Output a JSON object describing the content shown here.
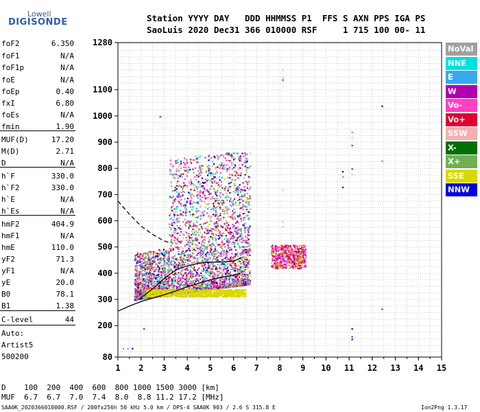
{
  "logo": {
    "line1": "Lowell",
    "line2": "DIGISONDE"
  },
  "header": {
    "line1": "Station YYYY DAY   DDD HHMMSS P1  FFS S AXN PPS IGA PS",
    "line2": "SaoLuis 2020 Dec31 366 010000 RSF     1 715 100 00- 11"
  },
  "params": [
    {
      "k": "foF2",
      "v": "6.350"
    },
    {
      "k": "foF1",
      "v": "N/A"
    },
    {
      "k": "foF1p",
      "v": "N/A"
    },
    {
      "k": "foE",
      "v": "N/A"
    },
    {
      "k": "foEp",
      "v": "0.40"
    },
    {
      "k": "fxI",
      "v": "6.80"
    },
    {
      "k": "foEs",
      "v": "N/A"
    },
    {
      "k": "fmin",
      "v": "1.90"
    },
    {
      "k": "MUF(D)",
      "v": "17.20"
    },
    {
      "k": "M(D)",
      "v": "2.71"
    },
    {
      "k": "D",
      "v": "N/A"
    },
    {
      "k": "h`F",
      "v": "330.0"
    },
    {
      "k": "h`F2",
      "v": "330.0"
    },
    {
      "k": "h`E",
      "v": "N/A"
    },
    {
      "k": "h`Es",
      "v": "N/A"
    },
    {
      "k": "hmF2",
      "v": "404.9"
    },
    {
      "k": "hmF1",
      "v": "N/A"
    },
    {
      "k": "hmE",
      "v": "110.0"
    },
    {
      "k": "yF2",
      "v": "71.3"
    },
    {
      "k": "yF1",
      "v": "N/A"
    },
    {
      "k": "yE",
      "v": "20.0"
    },
    {
      "k": "B0",
      "v": "78.1"
    },
    {
      "k": "B1",
      "v": "1.38"
    },
    {
      "k": "C-level",
      "v": "44"
    }
  ],
  "auto": {
    "l1": "Auto:",
    "l2": "Artist5",
    "l3": "500200"
  },
  "legend": [
    {
      "label": "NoVal",
      "color": "#a0a0a0"
    },
    {
      "label": "NNE",
      "color": "#00e0e0"
    },
    {
      "label": "E",
      "color": "#3aa8f0"
    },
    {
      "label": "W",
      "color": "#b000b0"
    },
    {
      "label": "Vo-",
      "color": "#ff40c0"
    },
    {
      "label": "Vo+",
      "color": "#e00030"
    },
    {
      "label": "SSW",
      "color": "#f5b0b0"
    },
    {
      "label": "X-",
      "color": "#007000"
    },
    {
      "label": "X+",
      "color": "#70b050"
    },
    {
      "label": "SSE",
      "color": "#d8d800"
    },
    {
      "label": "NNW",
      "color": "#0000e0"
    }
  ],
  "footer": {
    "d_line": "D    100  200  400  600  800 1000 1500 3000 [km]",
    "muf_line": "MUF  6.7  6.7  7.0  7.4  8.0  8.8 11.2 17.2 [MHz]",
    "file_line": "SAA0K_2020366010000.RSF / 200fx256h 50 kHz 5.0 km / DPS-4 SAA0K 903 / 2.6 S 315.8 E",
    "version": "Ion2Png 1.3.17"
  },
  "chart_data": {
    "type": "scatter",
    "x_ticks": [
      1,
      2,
      3,
      4,
      5,
      6,
      7,
      8,
      9,
      10,
      11,
      12,
      13,
      14,
      15
    ],
    "y_ticks": [
      80,
      200,
      300,
      400,
      500,
      600,
      700,
      800,
      900,
      1000,
      1100,
      1280
    ],
    "xlim": [
      1,
      15
    ],
    "ylim": [
      80,
      1280
    ],
    "grid": true,
    "trace_virtual": [
      [
        1,
        255
      ],
      [
        1.5,
        275
      ],
      [
        2,
        292
      ],
      [
        2.5,
        305
      ],
      [
        3,
        318
      ],
      [
        3.5,
        332
      ],
      [
        4,
        348
      ],
      [
        4.5,
        362
      ],
      [
        5,
        375
      ],
      [
        5.5,
        385
      ],
      [
        6,
        393
      ],
      [
        6.3,
        400
      ]
    ],
    "trace_true": [
      [
        1.9,
        300
      ],
      [
        2.5,
        340
      ],
      [
        3,
        380
      ],
      [
        3.5,
        412
      ],
      [
        4,
        428
      ],
      [
        4.5,
        438
      ],
      [
        5,
        442
      ],
      [
        5.5,
        443
      ],
      [
        6,
        446
      ],
      [
        6.35,
        460
      ]
    ],
    "trace_topside": [
      [
        1,
        675
      ],
      [
        1.5,
        625
      ],
      [
        2,
        580
      ],
      [
        2.5,
        548
      ],
      [
        3,
        523
      ],
      [
        3.3,
        515
      ]
    ]
  }
}
